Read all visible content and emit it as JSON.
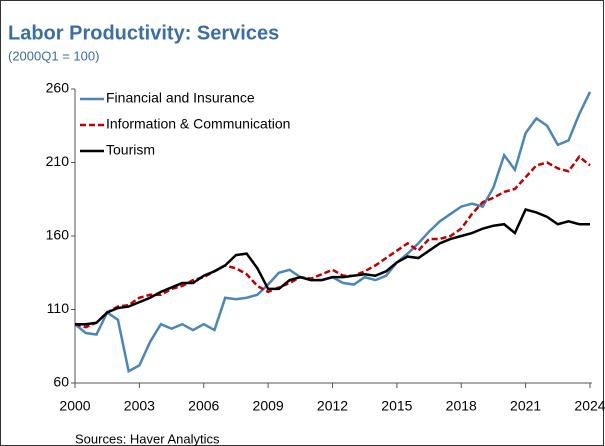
{
  "chart_data": {
    "type": "line",
    "title": "Labor Productivity: Services",
    "subtitle": "(2000Q1 = 100)",
    "source": "Sources: Haver Analytics",
    "x": [
      2000,
      2000.5,
      2001,
      2001.5,
      2002,
      2002.5,
      2003,
      2003.5,
      2004,
      2004.5,
      2005,
      2005.5,
      2006,
      2006.5,
      2007,
      2007.5,
      2008,
      2008.5,
      2009,
      2009.5,
      2010,
      2010.5,
      2011,
      2011.5,
      2012,
      2012.5,
      2013,
      2013.5,
      2014,
      2014.5,
      2015,
      2015.5,
      2016,
      2016.5,
      2017,
      2017.5,
      2018,
      2018.5,
      2019,
      2019.5,
      2020,
      2020.5,
      2021,
      2021.5,
      2022,
      2022.5,
      2023,
      2023.5,
      2024
    ],
    "xlim": [
      2000,
      2024
    ],
    "xticks": [
      2000,
      2003,
      2006,
      2009,
      2012,
      2015,
      2018,
      2021,
      2024
    ],
    "ylim": [
      60,
      260
    ],
    "yticks": [
      60,
      110,
      160,
      210,
      260
    ],
    "grid": false,
    "legend": "upper left",
    "series": [
      {
        "name": "Financial and Insurance",
        "color": "#4a86b8",
        "linestyle": "solid",
        "values": [
          100,
          94,
          93,
          108,
          103,
          68,
          72,
          88,
          100,
          97,
          100,
          96,
          100,
          96,
          118,
          117,
          118,
          120,
          127,
          135,
          137,
          132,
          130,
          130,
          132,
          128,
          127,
          132,
          130,
          133,
          142,
          148,
          155,
          163,
          170,
          175,
          180,
          182,
          180,
          193,
          215,
          205,
          230,
          240,
          235,
          222,
          225,
          243,
          258
        ]
      },
      {
        "name": "Information & Communication",
        "color": "#c00000",
        "linestyle": "dashed",
        "values": [
          100,
          98,
          101,
          108,
          112,
          113,
          118,
          120,
          120,
          124,
          126,
          130,
          132,
          136,
          140,
          138,
          134,
          126,
          122,
          125,
          128,
          132,
          131,
          134,
          137,
          133,
          133,
          136,
          140,
          145,
          150,
          155,
          150,
          158,
          158,
          160,
          165,
          175,
          183,
          186,
          190,
          192,
          200,
          208,
          210,
          206,
          204,
          214,
          208
        ]
      },
      {
        "name": "Tourism",
        "color": "#000000",
        "linestyle": "solid",
        "values": [
          100,
          100,
          101,
          108,
          111,
          112,
          115,
          118,
          122,
          125,
          128,
          128,
          133,
          136,
          140,
          147,
          148,
          138,
          124,
          124,
          130,
          132,
          130,
          130,
          132,
          132,
          133,
          134,
          133,
          136,
          142,
          146,
          145,
          150,
          155,
          158,
          160,
          162,
          165,
          167,
          168,
          162,
          178,
          176,
          173,
          168,
          170,
          168,
          168
        ]
      }
    ]
  }
}
